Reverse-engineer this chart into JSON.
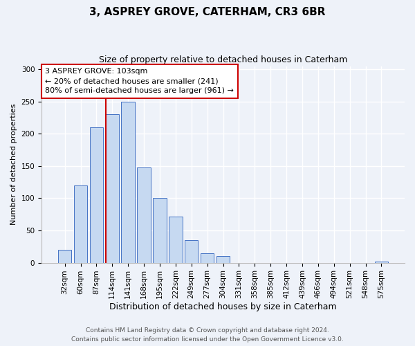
{
  "title": "3, ASPREY GROVE, CATERHAM, CR3 6BR",
  "subtitle": "Size of property relative to detached houses in Caterham",
  "xlabel": "Distribution of detached houses by size in Caterham",
  "ylabel": "Number of detached properties",
  "bar_labels": [
    "32sqm",
    "60sqm",
    "87sqm",
    "114sqm",
    "141sqm",
    "168sqm",
    "195sqm",
    "222sqm",
    "249sqm",
    "277sqm",
    "304sqm",
    "331sqm",
    "358sqm",
    "385sqm",
    "412sqm",
    "439sqm",
    "466sqm",
    "494sqm",
    "521sqm",
    "548sqm",
    "575sqm"
  ],
  "bar_values": [
    20,
    120,
    210,
    230,
    250,
    148,
    100,
    72,
    35,
    15,
    10,
    0,
    0,
    0,
    0,
    0,
    0,
    0,
    0,
    0,
    2
  ],
  "bar_color": "#c6d9f1",
  "bar_edge_color": "#4472c4",
  "vline_color": "#cc0000",
  "annotation_line1": "3 ASPREY GROVE: 103sqm",
  "annotation_line2": "← 20% of detached houses are smaller (241)",
  "annotation_line3": "80% of semi-detached houses are larger (961) →",
  "annotation_box_color": "#ffffff",
  "annotation_box_edge_color": "#cc0000",
  "ylim": [
    0,
    305
  ],
  "yticks": [
    0,
    50,
    100,
    150,
    200,
    250,
    300
  ],
  "footer_line1": "Contains HM Land Registry data © Crown copyright and database right 2024.",
  "footer_line2": "Contains public sector information licensed under the Open Government Licence v3.0.",
  "background_color": "#eef2f9",
  "plot_background_color": "#eef2f9",
  "title_fontsize": 11,
  "subtitle_fontsize": 9,
  "xlabel_fontsize": 9,
  "ylabel_fontsize": 8,
  "tick_fontsize": 7.5,
  "footer_fontsize": 6.5
}
